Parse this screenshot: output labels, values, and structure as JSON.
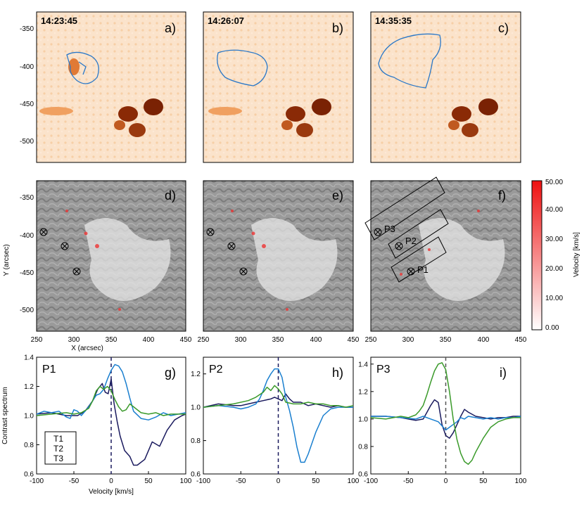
{
  "figure": {
    "timestamps": [
      "14:23:45",
      "14:26:07",
      "14:35:35"
    ],
    "colorbar": {
      "label": "Velocity [km/s]",
      "ticks": [
        "0.00",
        "10.00",
        "20.00",
        "30.00",
        "40.00",
        "50.00"
      ],
      "colors": {
        "low": "#ffffff",
        "high": "#ee1111"
      }
    },
    "image_axes": {
      "y_ticks": [
        "-350",
        "-400",
        "-450",
        "-500"
      ],
      "x_ticks": [
        "250",
        "300",
        "350",
        "400",
        "450"
      ],
      "y_label": "Y (arcsec)",
      "x_label": "X (arcsec)"
    },
    "points": [
      "P1",
      "P2",
      "P3"
    ],
    "colors": {
      "orange": "#f0a35a",
      "contour": "#2a78c8",
      "T1": "#1a1a5e",
      "T2": "#1a7fcf",
      "T3": "#3a9a2a"
    }
  },
  "panels": [
    {
      "id": "a",
      "label": "a)",
      "kind": "intensity",
      "time_index": 0
    },
    {
      "id": "b",
      "label": "b)",
      "kind": "intensity",
      "time_index": 1
    },
    {
      "id": "c",
      "label": "c)",
      "kind": "intensity",
      "time_index": 2
    },
    {
      "id": "d",
      "label": "d)",
      "kind": "velocity",
      "time_index": 0
    },
    {
      "id": "e",
      "label": "e)",
      "kind": "velocity",
      "time_index": 1
    },
    {
      "id": "f",
      "label": "f)",
      "kind": "velocity",
      "time_index": 2
    }
  ],
  "chart_data": [
    {
      "type": "line",
      "panel": "g)",
      "title": "P1",
      "xlabel": "Velocity [km/s]",
      "ylabel": "Contrast spectrum",
      "xlim": [
        -100,
        100
      ],
      "ylim": [
        0.6,
        1.4
      ],
      "yticks": [
        "0.6",
        "0.8",
        "1.0",
        "1.2",
        "1.4"
      ],
      "xticks": [
        "-100",
        "-50",
        "0",
        "50",
        "100"
      ],
      "series": [
        {
          "name": "T1",
          "color": "#1a1a5e",
          "x": [
            -100,
            -80,
            -60,
            -45,
            -35,
            -25,
            -18,
            -12,
            -8,
            -4,
            0,
            4,
            8,
            12,
            18,
            25,
            30,
            35,
            45,
            55,
            65,
            75,
            85,
            95,
            100
          ],
          "y": [
            1.01,
            1.02,
            1.0,
            1.0,
            1.03,
            1.1,
            1.18,
            1.22,
            1.16,
            1.15,
            1.25,
            1.08,
            0.96,
            0.86,
            0.76,
            0.72,
            0.66,
            0.66,
            0.7,
            0.82,
            0.79,
            0.9,
            0.97,
            1.0,
            1.01
          ]
        },
        {
          "name": "T2",
          "color": "#1a7fcf",
          "x": [
            -100,
            -90,
            -80,
            -70,
            -60,
            -55,
            -50,
            -45,
            -40,
            -35,
            -30,
            -25,
            -20,
            -15,
            -10,
            -5,
            0,
            5,
            10,
            15,
            20,
            25,
            30,
            40,
            50,
            60,
            70,
            80,
            90,
            100
          ],
          "y": [
            1.01,
            1.03,
            1.02,
            1.03,
            0.99,
            0.98,
            1.04,
            1.03,
            1.0,
            1.03,
            1.06,
            1.1,
            1.14,
            1.15,
            1.18,
            1.25,
            1.31,
            1.35,
            1.34,
            1.3,
            1.22,
            1.12,
            1.03,
            0.98,
            0.97,
            0.99,
            1.02,
            1.0,
            1.01,
            1.02
          ]
        },
        {
          "name": "T3",
          "color": "#3a9a2a",
          "x": [
            -100,
            -80,
            -60,
            -50,
            -40,
            -30,
            -25,
            -20,
            -15,
            -10,
            -5,
            0,
            5,
            10,
            15,
            20,
            25,
            30,
            40,
            50,
            60,
            70,
            80,
            90,
            100
          ],
          "y": [
            1.0,
            1.01,
            1.02,
            1.01,
            1.02,
            1.05,
            1.1,
            1.17,
            1.2,
            1.18,
            1.2,
            1.17,
            1.11,
            1.06,
            1.03,
            1.04,
            1.08,
            1.06,
            1.02,
            1.01,
            1.02,
            1.0,
            1.01,
            1.01,
            1.01
          ]
        }
      ]
    },
    {
      "type": "line",
      "panel": "h)",
      "title": "P2",
      "xlabel": "",
      "ylabel": "",
      "xlim": [
        -100,
        100
      ],
      "ylim": [
        0.6,
        1.3
      ],
      "yticks": [
        "0.6",
        "0.8",
        "1.0",
        "1.2"
      ],
      "xticks": [
        "-100",
        "-50",
        "0",
        "50",
        "100"
      ],
      "series": [
        {
          "name": "T1",
          "color": "#1a1a5e",
          "x": [
            -100,
            -80,
            -60,
            -50,
            -40,
            -30,
            -20,
            -10,
            -5,
            0,
            5,
            10,
            15,
            20,
            30,
            40,
            50,
            60,
            70,
            80,
            90,
            100
          ],
          "y": [
            1.0,
            1.02,
            1.01,
            1.01,
            1.02,
            1.03,
            1.04,
            1.05,
            1.06,
            1.05,
            1.04,
            1.08,
            1.05,
            1.03,
            1.03,
            1.01,
            1.02,
            1.01,
            1.0,
            1.01,
            1.0,
            1.0
          ]
        },
        {
          "name": "T2",
          "color": "#1a7fcf",
          "x": [
            -100,
            -80,
            -60,
            -50,
            -40,
            -30,
            -25,
            -20,
            -15,
            -10,
            -5,
            0,
            5,
            10,
            15,
            20,
            25,
            30,
            35,
            40,
            50,
            60,
            70,
            80,
            90,
            100
          ],
          "y": [
            1.0,
            1.01,
            1.0,
            0.99,
            1.0,
            1.02,
            1.05,
            1.1,
            1.16,
            1.2,
            1.23,
            1.23,
            1.18,
            1.06,
            0.98,
            0.88,
            0.76,
            0.67,
            0.67,
            0.72,
            0.85,
            0.95,
            0.99,
            1.0,
            1.0,
            1.0
          ]
        },
        {
          "name": "T3",
          "color": "#3a9a2a",
          "x": [
            -100,
            -80,
            -60,
            -40,
            -30,
            -20,
            -15,
            -10,
            -5,
            0,
            5,
            10,
            20,
            30,
            40,
            50,
            60,
            70,
            80,
            90,
            100
          ],
          "y": [
            1.0,
            1.01,
            1.02,
            1.04,
            1.06,
            1.09,
            1.12,
            1.1,
            1.13,
            1.11,
            1.08,
            1.03,
            1.02,
            1.02,
            1.03,
            1.02,
            1.02,
            1.01,
            1.01,
            1.0,
            1.01
          ]
        }
      ]
    },
    {
      "type": "line",
      "panel": "i)",
      "title": "P3",
      "xlabel": "",
      "ylabel": "",
      "xlim": [
        -100,
        100
      ],
      "ylim": [
        0.6,
        1.45
      ],
      "yticks": [
        "0.6",
        "0.8",
        "1.0",
        "1.2",
        "1.4"
      ],
      "xticks": [
        "-100",
        "-50",
        "0",
        "50",
        "100"
      ],
      "series": [
        {
          "name": "T1",
          "color": "#1a1a5e",
          "x": [
            -100,
            -80,
            -60,
            -50,
            -40,
            -30,
            -25,
            -20,
            -15,
            -10,
            -5,
            0,
            5,
            10,
            15,
            20,
            25,
            30,
            40,
            50,
            60,
            70,
            80,
            90,
            100
          ],
          "y": [
            1.02,
            1.02,
            1.01,
            1.0,
            0.99,
            1.0,
            1.05,
            1.1,
            1.14,
            1.12,
            0.96,
            0.88,
            0.86,
            0.9,
            0.96,
            1.02,
            1.07,
            1.05,
            1.02,
            1.01,
            1.0,
            1.01,
            1.01,
            1.02,
            1.02
          ]
        },
        {
          "name": "T2",
          "color": "#1a7fcf",
          "x": [
            -100,
            -80,
            -60,
            -40,
            -30,
            -20,
            -15,
            -10,
            -5,
            0,
            5,
            10,
            15,
            20,
            25,
            30,
            40,
            50,
            60,
            70,
            80,
            90,
            100
          ],
          "y": [
            1.02,
            1.02,
            1.01,
            1.0,
            1.02,
            1.0,
            0.99,
            0.98,
            0.95,
            0.92,
            0.94,
            0.96,
            0.98,
            1.01,
            1.0,
            1.02,
            1.01,
            1.0,
            1.01,
            1.0,
            1.01,
            1.01,
            1.02
          ]
        },
        {
          "name": "T3",
          "color": "#3a9a2a",
          "x": [
            -100,
            -80,
            -60,
            -50,
            -40,
            -35,
            -30,
            -25,
            -20,
            -15,
            -10,
            -5,
            0,
            5,
            10,
            15,
            20,
            25,
            30,
            35,
            40,
            50,
            60,
            70,
            80,
            90,
            100
          ],
          "y": [
            1.01,
            1.0,
            1.02,
            1.01,
            1.03,
            1.06,
            1.1,
            1.18,
            1.27,
            1.35,
            1.4,
            1.41,
            1.36,
            1.2,
            1.0,
            0.85,
            0.75,
            0.69,
            0.67,
            0.7,
            0.76,
            0.86,
            0.94,
            0.98,
            1.0,
            1.01,
            1.01
          ]
        }
      ]
    }
  ]
}
